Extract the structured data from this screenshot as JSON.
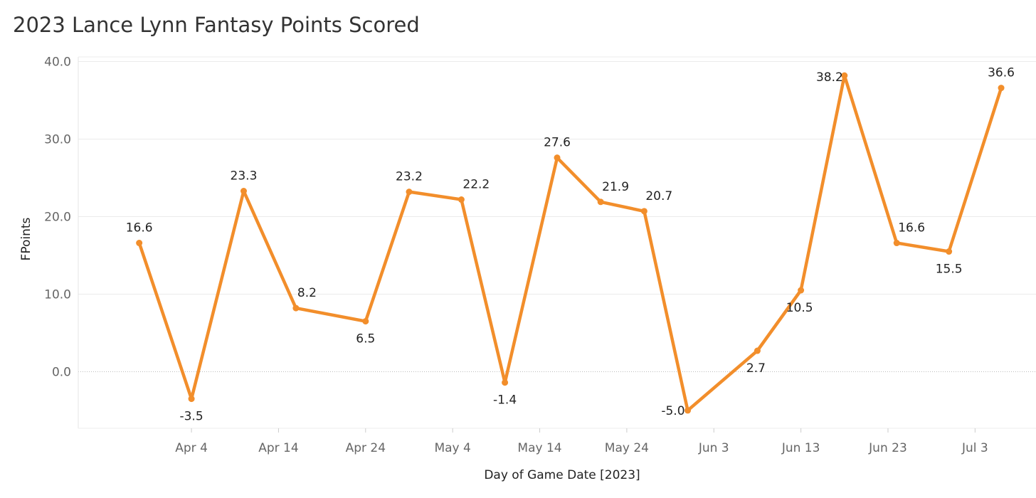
{
  "chart_data": {
    "type": "line",
    "title": "2023 Lance Lynn Fantasy Points Scored",
    "xlabel": "Day of Game Date [2023]",
    "ylabel": "FPoints",
    "x_ticks": [
      {
        "label": "Apr 4",
        "date": "2023-04-04"
      },
      {
        "label": "Apr 14",
        "date": "2023-04-14"
      },
      {
        "label": "Apr 24",
        "date": "2023-04-24"
      },
      {
        "label": "May 4",
        "date": "2023-05-04"
      },
      {
        "label": "May 14",
        "date": "2023-05-14"
      },
      {
        "label": "May 24",
        "date": "2023-05-24"
      },
      {
        "label": "Jun 3",
        "date": "2023-06-03"
      },
      {
        "label": "Jun 13",
        "date": "2023-06-13"
      },
      {
        "label": "Jun 23",
        "date": "2023-06-23"
      },
      {
        "label": "Jul 3",
        "date": "2023-07-03"
      }
    ],
    "y_ticks": [
      0,
      10,
      20,
      30,
      40
    ],
    "ylim": [
      -7.3,
      40.6
    ],
    "xlim": [
      "2023-03-22",
      "2023-07-10"
    ],
    "grid": true,
    "color": "#F28E2B",
    "series": [
      {
        "points": [
          {
            "x": "2023-03-29",
            "y": 16.6
          },
          {
            "x": "2023-04-04",
            "y": -3.5
          },
          {
            "x": "2023-04-10",
            "y": 23.3
          },
          {
            "x": "2023-04-16",
            "y": 8.2
          },
          {
            "x": "2023-04-24",
            "y": 6.5
          },
          {
            "x": "2023-04-29",
            "y": 23.2
          },
          {
            "x": "2023-05-05",
            "y": 22.2
          },
          {
            "x": "2023-05-10",
            "y": -1.4
          },
          {
            "x": "2023-05-16",
            "y": 27.6
          },
          {
            "x": "2023-05-21",
            "y": 21.9
          },
          {
            "x": "2023-05-26",
            "y": 20.7
          },
          {
            "x": "2023-05-31",
            "y": -5.0
          },
          {
            "x": "2023-06-08",
            "y": 2.7
          },
          {
            "x": "2023-06-13",
            "y": 10.5
          },
          {
            "x": "2023-06-18",
            "y": 38.2
          },
          {
            "x": "2023-06-24",
            "y": 16.6
          },
          {
            "x": "2023-06-30",
            "y": 15.5
          },
          {
            "x": "2023-07-06",
            "y": 36.6
          }
        ]
      }
    ]
  }
}
